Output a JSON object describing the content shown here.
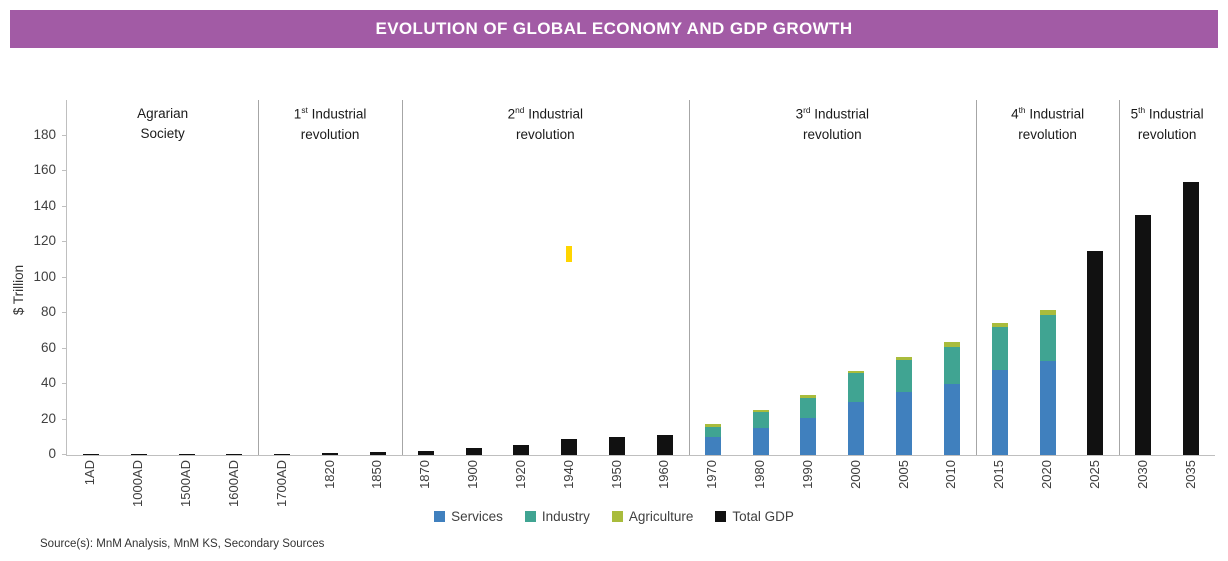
{
  "banner": {
    "title": "EVOLUTION OF GLOBAL ECONOMY AND GDP GROWTH",
    "background_color": "#A25BA5",
    "text_color": "#FFFFFF"
  },
  "source_text": "Source(s): MnM Analysis, MnM KS, Secondary Sources",
  "chart_data": {
    "type": "bar",
    "stacked": true,
    "title": "EVOLUTION OF GLOBAL ECONOMY AND GDP GROWTH",
    "xlabel": "",
    "ylabel": "$ Trillion",
    "ylim": [
      0,
      200
    ],
    "yticks": [
      0,
      20,
      40,
      60,
      80,
      100,
      120,
      140,
      160,
      180
    ],
    "grid": false,
    "legend_position": "bottom",
    "categories": [
      "1AD",
      "1000AD",
      "1500AD",
      "1600AD",
      "1700AD",
      "1820",
      "1850",
      "1870",
      "1900",
      "1920",
      "1940",
      "1950",
      "1960",
      "1970",
      "1980",
      "1990",
      "2000",
      "2005",
      "2010",
      "2015",
      "2020",
      "2025",
      "2030",
      "2035"
    ],
    "series": [
      {
        "name": "Services",
        "color": "#4080BE",
        "values": [
          0,
          0,
          0,
          0,
          0,
          0,
          0,
          0,
          0,
          0,
          0,
          0,
          0,
          10,
          15,
          21,
          30,
          35.5,
          40,
          48,
          53,
          0,
          0,
          0
        ]
      },
      {
        "name": "Industry",
        "color": "#40A492",
        "values": [
          0,
          0,
          0,
          0,
          0,
          0,
          0,
          0,
          0,
          0,
          0,
          0,
          0,
          6,
          9,
          11,
          16,
          18,
          21,
          24,
          26,
          0,
          0,
          0
        ]
      },
      {
        "name": "Agriculture",
        "color": "#A9BC3C",
        "values": [
          0,
          0,
          0,
          0,
          0,
          0,
          0,
          0,
          0,
          0,
          0,
          0,
          0,
          1.5,
          1.5,
          2,
          1.5,
          2,
          2.5,
          2.5,
          2.5,
          0,
          0,
          0
        ]
      },
      {
        "name": "Total GDP",
        "color": "#111111",
        "values": [
          0.4,
          0.4,
          0.5,
          0.5,
          0.6,
          1,
          1.7,
          2.3,
          4,
          5.5,
          9,
          10,
          11.5,
          0,
          0,
          0,
          0,
          0,
          0,
          0,
          0,
          115,
          135,
          154
        ]
      }
    ],
    "eras": [
      {
        "number": "",
        "ordinal": "",
        "text": "Agrarian Society",
        "start": 0,
        "end": 3
      },
      {
        "number": "1",
        "ordinal": "st",
        "text": "Industrial revolution",
        "start": 4,
        "end": 6
      },
      {
        "number": "2",
        "ordinal": "nd",
        "text": "Industrial revolution",
        "start": 7,
        "end": 12
      },
      {
        "number": "3",
        "ordinal": "rd",
        "text": "Industrial revolution",
        "start": 13,
        "end": 18
      },
      {
        "number": "4",
        "ordinal": "th",
        "text": "Industrial revolution",
        "start": 19,
        "end": 21
      },
      {
        "number": "5",
        "ordinal": "th",
        "text": "Industrial revolution",
        "start": 22,
        "end": 23
      }
    ],
    "stray_mark": {
      "category_index": 10,
      "category": "1940",
      "value_bottom": 109,
      "value_top": 118,
      "color": "#FFD500"
    }
  }
}
